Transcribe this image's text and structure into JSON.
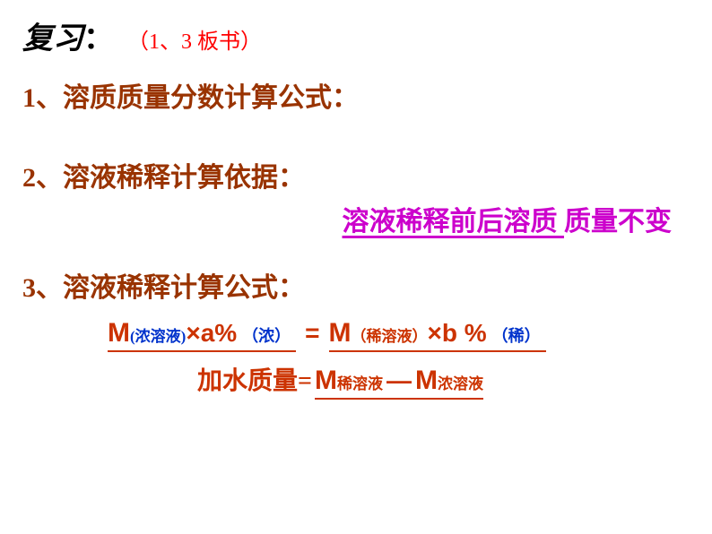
{
  "header": {
    "title": "复习",
    "colon": "：",
    "note": "（1、3 板书）"
  },
  "item1": "1、溶质质量分数计算公式：",
  "item2": "2、溶液稀释计算依据：",
  "purple": {
    "part1": "  溶液稀释前后",
    "part2": "溶质 ",
    "part3": "质量不变"
  },
  "item3": "3、溶液稀释计算公式：",
  "formula1": {
    "m1": "M",
    "sub1_open": "(",
    "sub1_text": "浓溶液",
    "sub1_close": ")",
    "times1": "×a%",
    "paren1": "（浓）",
    "equals": "=",
    "m2": "M",
    "sub2_open": "（",
    "sub2_text": "稀溶液",
    "sub2_close": "）",
    "times2": "×b %",
    "paren2": "（稀）"
  },
  "formula2": {
    "label": "加水质量=",
    "m1": "M",
    "sub1": "稀溶液",
    "dash": "—",
    "m2": "M",
    "sub2": "浓溶液"
  },
  "colors": {
    "black": "#000000",
    "red": "#ff0000",
    "maroon": "#993300",
    "purple": "#cc00cc",
    "orange_red": "#cc3300",
    "blue": "#0033cc",
    "background": "#ffffff"
  }
}
